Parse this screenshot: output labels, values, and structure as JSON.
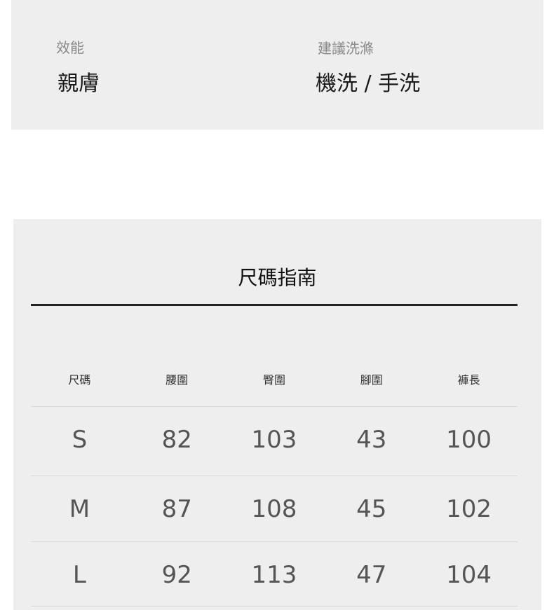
{
  "attributes": [
    {
      "label": "效能",
      "value": "親膚"
    },
    {
      "label": "建議洗滌",
      "value": "機洗 / 手洗"
    }
  ],
  "size_guide": {
    "title": "尺碼指南",
    "headers": [
      "尺碼",
      "腰圍",
      "臀圍",
      "腳圍",
      "褲長"
    ],
    "rows": [
      [
        "S",
        "82",
        "103",
        "43",
        "100"
      ],
      [
        "M",
        "87",
        "108",
        "45",
        "102"
      ],
      [
        "L",
        "92",
        "113",
        "47",
        "104"
      ]
    ]
  }
}
